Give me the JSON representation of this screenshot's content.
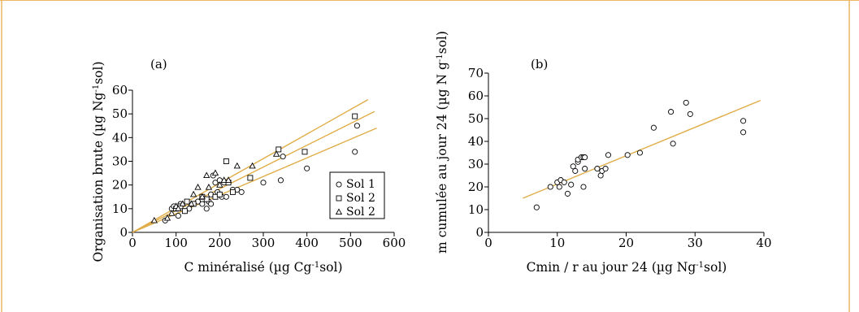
{
  "colors": {
    "frame": "#eab763",
    "regression_line": "#e0ad48",
    "marker_stroke": "#000000",
    "background": "#ffffff"
  },
  "chart_data": [
    {
      "panel_label": "(a)",
      "type": "scatter",
      "xlabel": "C minéralisé (µg Cg-1sol)",
      "ylabel": "Organisation brute (µg Ng-1sol)",
      "xlim": [
        0,
        600
      ],
      "ylim": [
        0,
        60
      ],
      "xticks": [
        0,
        100,
        200,
        300,
        400,
        500,
        600
      ],
      "yticks": [
        0,
        10,
        20,
        30,
        40,
        50,
        60
      ],
      "legend": {
        "position": "bottom-right",
        "entries": [
          "Sol 1",
          "Sol 2",
          "Sol 2"
        ]
      },
      "series": [
        {
          "name": "Sol 1",
          "marker": "circle",
          "points": [
            [
              75,
              5
            ],
            [
              90,
              10
            ],
            [
              95,
              11
            ],
            [
              105,
              7
            ],
            [
              110,
              12
            ],
            [
              120,
              9
            ],
            [
              130,
              10
            ],
            [
              150,
              13
            ],
            [
              160,
              12
            ],
            [
              170,
              10
            ],
            [
              175,
              13
            ],
            [
              180,
              12
            ],
            [
              180,
              16
            ],
            [
              185,
              24
            ],
            [
              190,
              21
            ],
            [
              195,
              17
            ],
            [
              200,
              22
            ],
            [
              205,
              15
            ],
            [
              210,
              21
            ],
            [
              215,
              15
            ],
            [
              230,
              18
            ],
            [
              240,
              18
            ],
            [
              250,
              17
            ],
            [
              300,
              21
            ],
            [
              340,
              22
            ],
            [
              345,
              32
            ],
            [
              400,
              27
            ],
            [
              510,
              34
            ],
            [
              515,
              45
            ]
          ]
        },
        {
          "name": "Sol 2",
          "marker": "square",
          "points": [
            [
              100,
              10
            ],
            [
              110,
              11
            ],
            [
              120,
              9
            ],
            [
              125,
              13
            ],
            [
              140,
              12
            ],
            [
              160,
              15
            ],
            [
              170,
              14
            ],
            [
              190,
              15
            ],
            [
              200,
              16
            ],
            [
              215,
              30
            ],
            [
              220,
              21
            ],
            [
              230,
              17
            ],
            [
              270,
              23
            ],
            [
              335,
              35
            ],
            [
              395,
              34
            ],
            [
              510,
              49
            ]
          ]
        },
        {
          "name": "Sol 2",
          "marker": "triangle",
          "points": [
            [
              50,
              5
            ],
            [
              80,
              6
            ],
            [
              90,
              8
            ],
            [
              100,
              11
            ],
            [
              105,
              10
            ],
            [
              115,
              12
            ],
            [
              135,
              12
            ],
            [
              140,
              16
            ],
            [
              150,
              19
            ],
            [
              160,
              15
            ],
            [
              170,
              24
            ],
            [
              175,
              19
            ],
            [
              190,
              25
            ],
            [
              200,
              20
            ],
            [
              210,
              22
            ],
            [
              220,
              22
            ],
            [
              240,
              28
            ],
            [
              275,
              28
            ],
            [
              330,
              33
            ]
          ]
        }
      ],
      "regression_lines": [
        {
          "x": [
            0,
            540
          ],
          "y": [
            0,
            56
          ]
        },
        {
          "x": [
            0,
            555
          ],
          "y": [
            0,
            51
          ]
        },
        {
          "x": [
            0,
            560
          ],
          "y": [
            0,
            44
          ]
        }
      ]
    },
    {
      "panel_label": "(b)",
      "type": "scatter",
      "xlabel": "Cmin / r au jour 24 (µg Ng-1sol)",
      "ylabel": "m cumulée au jour 24 (µg N g-1sol)",
      "xlim": [
        0,
        40
      ],
      "ylim": [
        0,
        70
      ],
      "xticks": [
        0,
        10,
        20,
        30,
        40
      ],
      "yticks": [
        0,
        10,
        20,
        30,
        40,
        50,
        60,
        70
      ],
      "series": [
        {
          "name": "",
          "marker": "circle",
          "points": [
            [
              7,
              11
            ],
            [
              9,
              20
            ],
            [
              10,
              22
            ],
            [
              10.3,
              20
            ],
            [
              10.5,
              23
            ],
            [
              11,
              22
            ],
            [
              11.5,
              17
            ],
            [
              12,
              21
            ],
            [
              12.3,
              29
            ],
            [
              12.6,
              27
            ],
            [
              13,
              31
            ],
            [
              13,
              32
            ],
            [
              13.5,
              33
            ],
            [
              13.8,
              33
            ],
            [
              13.8,
              20
            ],
            [
              14,
              28
            ],
            [
              14,
              33
            ],
            [
              15.8,
              28
            ],
            [
              16.3,
              25
            ],
            [
              16.5,
              27
            ],
            [
              17,
              28
            ],
            [
              17.4,
              34
            ],
            [
              20.2,
              34
            ],
            [
              22,
              35
            ],
            [
              24,
              46
            ],
            [
              26.5,
              53
            ],
            [
              26.8,
              39
            ],
            [
              28.7,
              57
            ],
            [
              29.3,
              52
            ],
            [
              37,
              49
            ],
            [
              37,
              44
            ]
          ]
        }
      ],
      "regression_lines": [
        {
          "x": [
            5,
            39.5
          ],
          "y": [
            15,
            58
          ]
        }
      ]
    }
  ]
}
